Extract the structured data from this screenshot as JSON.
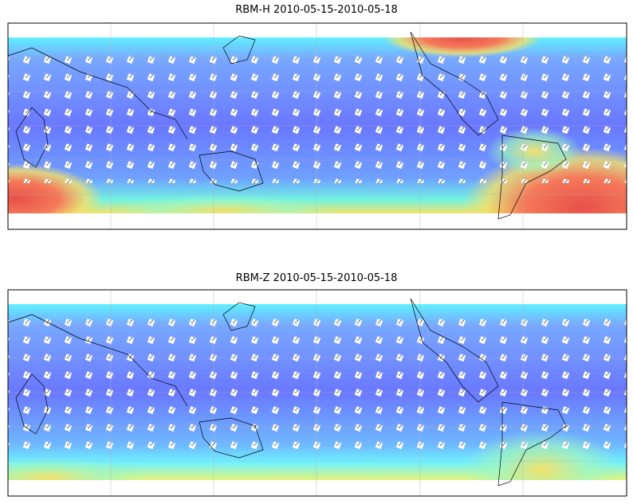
{
  "maps": [
    {
      "title": "RBM-H 2010-05-15-2010-05-18"
    },
    {
      "title": "RBM-Z 2010-05-15-2010-05-18"
    }
  ]
}
